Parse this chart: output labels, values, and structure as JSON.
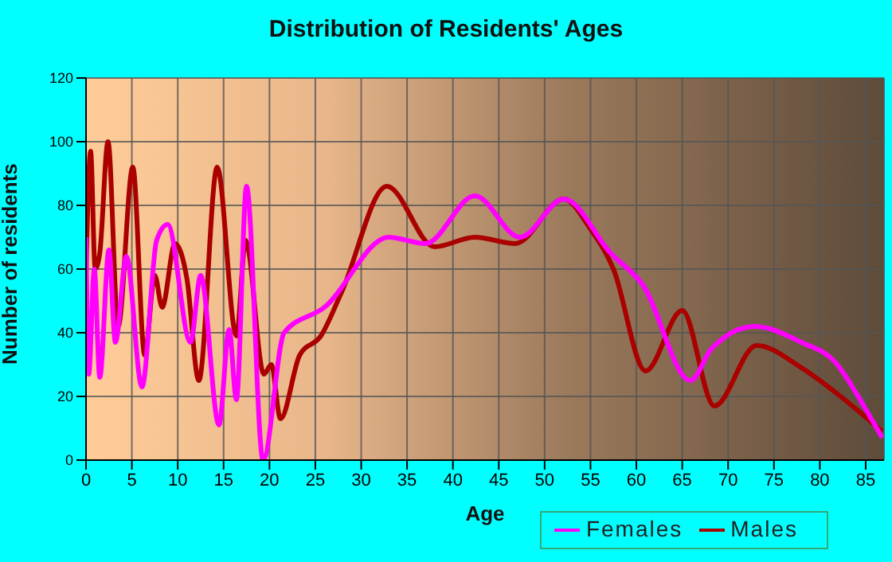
{
  "chart_data": {
    "type": "line",
    "title": "Distribution of Residents' Ages",
    "xlabel": "Age",
    "ylabel": "Number of residents",
    "xlim": [
      0,
      87
    ],
    "xticks": [
      0,
      5,
      10,
      15,
      20,
      25,
      30,
      35,
      40,
      45,
      50,
      55,
      60,
      65,
      70,
      75,
      80,
      85
    ],
    "ylim": [
      0,
      120
    ],
    "yticks": [
      0,
      20,
      40,
      60,
      80,
      100,
      120
    ],
    "grid": true,
    "legend": "bottom",
    "marker": "none",
    "line_style": "solid",
    "series": [
      {
        "name": "Males",
        "color": "#aa0000",
        "x": [
          0,
          0.5,
          1,
          1.5,
          2.4,
          3.5,
          5.1,
          6.4,
          7.5,
          8.3,
          9.7,
          11,
          12.3,
          14.3,
          16.4,
          17.4,
          19.4,
          20.2,
          21.2,
          23.3,
          25.6,
          27.9,
          32.8,
          38,
          42.4,
          46.8,
          52.1,
          54.9,
          57.5,
          61,
          65,
          68.5,
          73.1,
          78,
          82.7,
          86.8
        ],
        "values": [
          59,
          97,
          60,
          65,
          100,
          42,
          92,
          33,
          58,
          48,
          68,
          57,
          25,
          92,
          39,
          69,
          27,
          30,
          13,
          33,
          39,
          53,
          86,
          67,
          70,
          68,
          82,
          73,
          60,
          28,
          47,
          17,
          36,
          29,
          19,
          9
        ]
      },
      {
        "name": "Females",
        "color": "#ff00ff",
        "x": [
          0,
          0.3,
          0.9,
          1.5,
          2.5,
          3.2,
          4.4,
          6.1,
          7.7,
          8.9,
          11.4,
          12.5,
          14.5,
          15.6,
          16.4,
          17.5,
          19.3,
          21.6,
          26,
          33,
          37,
          42.4,
          47.3,
          52.1,
          57.2,
          60.7,
          65.9,
          68.2,
          72.9,
          78,
          81.6,
          85,
          86.8
        ],
        "values": [
          70,
          27,
          60,
          26,
          66,
          37,
          64,
          23,
          69,
          74,
          37,
          58,
          11,
          41,
          19,
          86,
          0,
          40,
          48,
          70,
          68,
          83,
          70,
          82,
          65,
          55,
          25,
          35,
          42,
          37,
          31,
          16,
          7
        ]
      }
    ]
  }
}
